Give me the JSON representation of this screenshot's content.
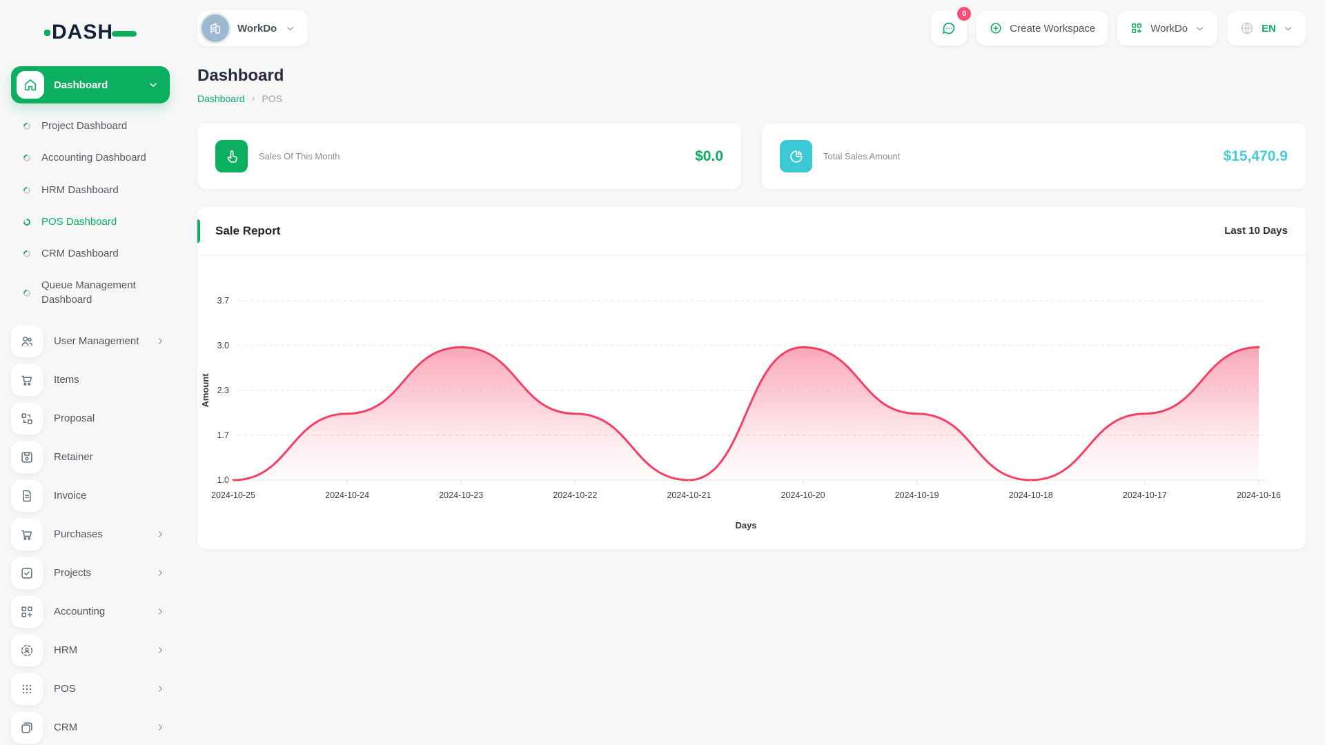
{
  "brand": {
    "name": "DASH",
    "accent": "#0caf60"
  },
  "topbar": {
    "workspace_chip": "WorkDo",
    "messages_count": "0",
    "create_workspace": "Create Workspace",
    "workspace_menu": "WorkDo",
    "language": "EN"
  },
  "sidebar": {
    "dashboard": {
      "label": "Dashboard",
      "children": [
        {
          "label": "Project Dashboard",
          "active": false
        },
        {
          "label": "Accounting Dashboard",
          "active": false
        },
        {
          "label": "HRM Dashboard",
          "active": false
        },
        {
          "label": "POS Dashboard",
          "active": true
        },
        {
          "label": "CRM Dashboard",
          "active": false
        },
        {
          "label": "Queue Management Dashboard",
          "active": false
        }
      ]
    },
    "menu": [
      {
        "label": "User Management",
        "icon": "users-icon",
        "expandable": true
      },
      {
        "label": "Items",
        "icon": "cart-icon",
        "expandable": false
      },
      {
        "label": "Proposal",
        "icon": "proposal-icon",
        "expandable": false
      },
      {
        "label": "Retainer",
        "icon": "retainer-icon",
        "expandable": false
      },
      {
        "label": "Invoice",
        "icon": "invoice-icon",
        "expandable": false
      },
      {
        "label": "Purchases",
        "icon": "cart-icon",
        "expandable": true
      },
      {
        "label": "Projects",
        "icon": "check-square-icon",
        "expandable": true
      },
      {
        "label": "Accounting",
        "icon": "grid-plus-icon",
        "expandable": true
      },
      {
        "label": "HRM",
        "icon": "person-circle-icon",
        "expandable": true
      },
      {
        "label": "POS",
        "icon": "dots-grid-icon",
        "expandable": true
      },
      {
        "label": "CRM",
        "icon": "squares-icon",
        "expandable": true
      }
    ]
  },
  "page": {
    "title": "Dashboard",
    "breadcrumb": {
      "parent": "Dashboard",
      "separator": "›",
      "current": "POS"
    }
  },
  "stat_cards": [
    {
      "label": "Sales Of This Month",
      "value": "$0.0",
      "icon": "tap-icon",
      "accent": "#0caf60"
    },
    {
      "label": "Total Sales Amount",
      "value": "$15,470.9",
      "icon": "pie-chart-icon",
      "accent": "#3cc9d6"
    }
  ],
  "sale_report": {
    "title": "Sale Report",
    "range": "Last 10 Days"
  },
  "chart_data": {
    "type": "area",
    "title": "Sale Report",
    "x": [
      "2024-10-25",
      "2024-10-24",
      "2024-10-23",
      "2024-10-22",
      "2024-10-21",
      "2024-10-20",
      "2024-10-19",
      "2024-10-18",
      "2024-10-17",
      "2024-10-16"
    ],
    "series": [
      {
        "name": "Amount",
        "values": [
          1.0,
          2.0,
          3.0,
          2.0,
          1.0,
          3.0,
          2.0,
          1.0,
          2.0,
          3.0
        ]
      }
    ],
    "xlabel": "Days",
    "ylabel": "Amount",
    "ytick_labels": [
      "1.0",
      "1.7",
      "2.3",
      "3.0",
      "3.7"
    ],
    "ylim": [
      1.0,
      3.7
    ],
    "grid": "dashed-horizontal",
    "legend": "none",
    "line_color": "#f43f63",
    "fill_style": "pink-vertical-gradient"
  }
}
